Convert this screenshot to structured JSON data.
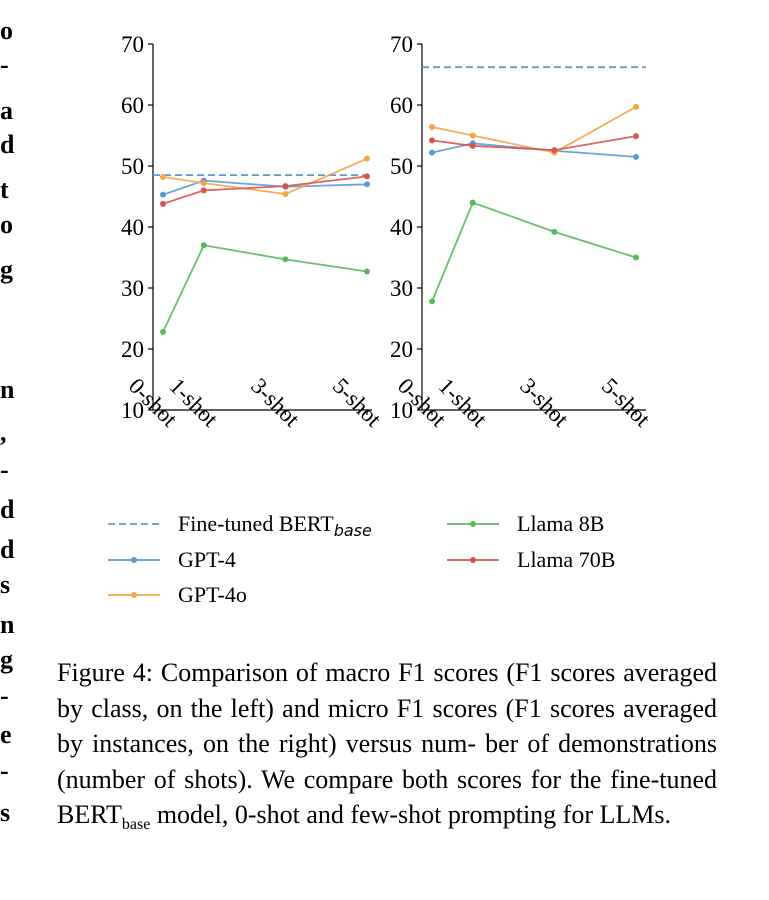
{
  "margin_fragments": [
    "o",
    "-",
    "a",
    "d",
    "t",
    "o",
    "g",
    "n",
    ",",
    "-",
    "d",
    "d",
    "s",
    "n",
    "g",
    "-",
    "e",
    "-",
    "s"
  ],
  "caption": {
    "label": "Figure 4:",
    "line1_rest": " Comparison of macro F1 scores (F1 scores",
    "line2": "averaged by class, on the left) and micro F1 scores (F1",
    "line3": "scores averaged by instances, on the right) versus num-",
    "line4": "ber of demonstrations (number of shots). We compare",
    "line5_pre": "both scores for the fine-tuned BERT",
    "line5_sub": "base",
    "line5_post": " model, 0-shot",
    "line6": "and few-shot prompting for LLMs."
  },
  "legend": [
    {
      "name": "Fine-tuned BERT",
      "sub": "base",
      "color": "#5b9bd5",
      "style": "dashed"
    },
    {
      "name": "GPT-4",
      "color": "#5b9bd5",
      "style": "solid"
    },
    {
      "name": "GPT-4o",
      "color": "#f5a54a",
      "style": "solid"
    },
    {
      "name": "Llama 8B",
      "color": "#5cb85c",
      "style": "solid"
    },
    {
      "name": "Llama 70B",
      "color": "#d9534f",
      "style": "solid"
    }
  ],
  "chart_data": [
    {
      "type": "line",
      "panel": "left",
      "x": [
        0,
        1,
        3,
        5
      ],
      "x_tick_labels": [
        "0-shot",
        "1-shot",
        "3-shot",
        "5-shot"
      ],
      "ylim": [
        10,
        70
      ],
      "y_ticks": [
        10,
        20,
        30,
        40,
        50,
        60,
        70
      ],
      "grid": false,
      "reference_line": {
        "name": "Fine-tuned BERT",
        "value": 48.5
      },
      "series": [
        {
          "name": "GPT-4",
          "values": [
            45.3,
            47.6,
            46.6,
            47.0
          ]
        },
        {
          "name": "GPT-4o",
          "values": [
            48.2,
            47.2,
            45.4,
            51.2
          ]
        },
        {
          "name": "Llama 8B",
          "values": [
            22.8,
            37.0,
            34.7,
            32.7
          ]
        },
        {
          "name": "Llama 70B",
          "values": [
            43.8,
            46.0,
            46.7,
            48.3
          ]
        }
      ]
    },
    {
      "type": "line",
      "panel": "right",
      "x": [
        0,
        1,
        3,
        5
      ],
      "x_tick_labels": [
        "0-shot",
        "1-shot",
        "3-shot",
        "5-shot"
      ],
      "ylim": [
        10,
        70
      ],
      "y_ticks": [
        10,
        20,
        30,
        40,
        50,
        60,
        70
      ],
      "grid": false,
      "reference_line": {
        "name": "Fine-tuned BERT",
        "value": 66.2
      },
      "series": [
        {
          "name": "GPT-4",
          "values": [
            52.2,
            53.7,
            52.5,
            51.5
          ]
        },
        {
          "name": "GPT-4o",
          "values": [
            56.4,
            55.0,
            52.2,
            59.7
          ]
        },
        {
          "name": "Llama 8B",
          "values": [
            27.8,
            44.0,
            39.2,
            35.0
          ]
        },
        {
          "name": "Llama 70B",
          "values": [
            54.2,
            53.3,
            52.6,
            54.9
          ]
        }
      ]
    }
  ]
}
